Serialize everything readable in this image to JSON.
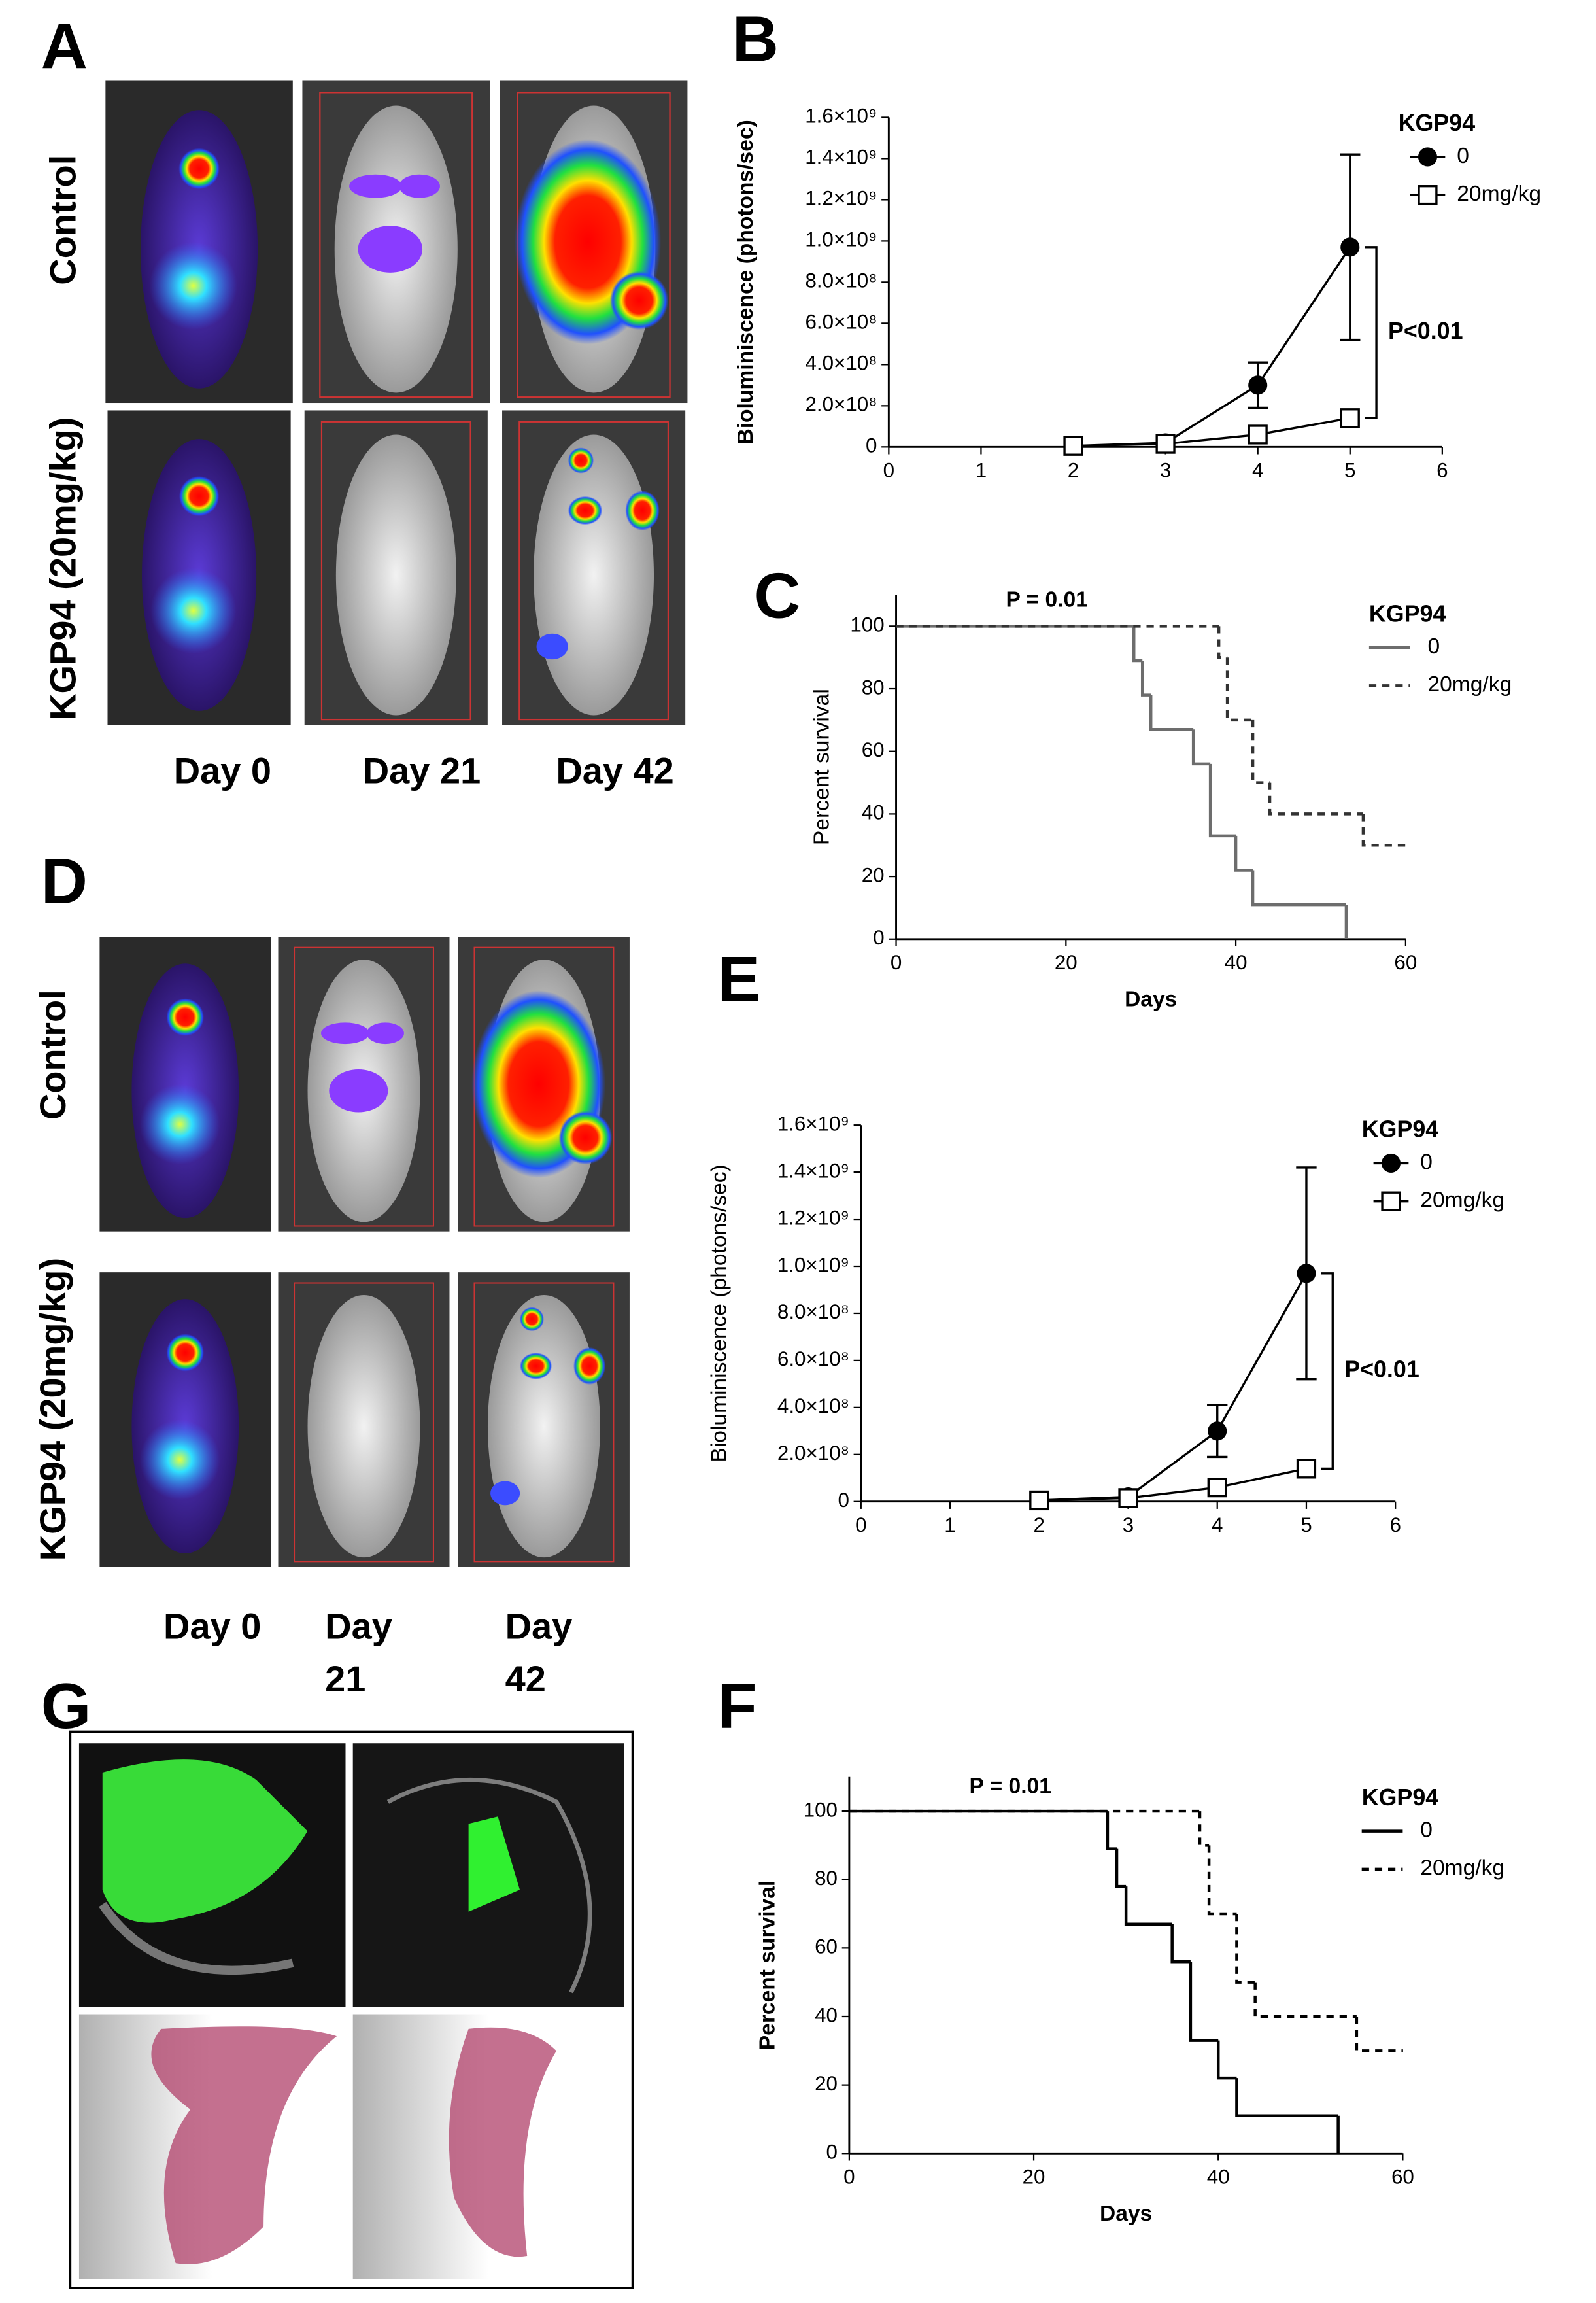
{
  "figure": {
    "panel_letters": [
      "A",
      "B",
      "C",
      "D",
      "E",
      "F",
      "G"
    ],
    "row_labels_A": [
      "Control",
      "KGP94 (20mg/kg)"
    ],
    "row_labels_D": [
      "Control",
      "KGP94 (20mg/kg)"
    ],
    "day_labels_A": [
      "Day 0",
      "Day 21",
      "Day 42"
    ],
    "day_labels_D": [
      [
        "Day 0"
      ],
      [
        "Day",
        "21"
      ],
      [
        "Day",
        "42"
      ]
    ]
  },
  "chart_data": [
    {
      "type": "line",
      "y_label": "Bioluminiscence (photons/sec)",
      "legend_title": "KGP94",
      "annotation": "P<0.01",
      "xlim": [
        0,
        6
      ],
      "xticks": [
        0,
        1,
        2,
        3,
        4,
        5,
        6
      ],
      "ylim": [
        0,
        1600000000
      ],
      "yticks": [
        0,
        {
          "value": 200000000,
          "label": "2.0×10⁸"
        },
        {
          "value": 400000000,
          "label": "4.0×10⁸"
        },
        {
          "value": 600000000,
          "label": "6.0×10⁸"
        },
        {
          "value": 800000000,
          "label": "8.0×10⁸"
        },
        {
          "value": 1000000000,
          "label": "1.0×10⁹"
        },
        {
          "value": 1200000000,
          "label": "1.2×10⁹"
        },
        {
          "value": 1400000000,
          "label": "1.4×10⁹"
        },
        {
          "value": 1600000000,
          "label": "1.6×10⁹"
        }
      ],
      "x": [
        2,
        3,
        4,
        5
      ],
      "series": [
        {
          "name": "0",
          "color": "#000000",
          "marker": "circle",
          "values": [
            5000000,
            20000000,
            300000000,
            970000000
          ],
          "errors": [
            null,
            null,
            110000000,
            450000000
          ]
        },
        {
          "name": "20mg/kg",
          "color": "#000000",
          "marker": "square",
          "values": [
            5000000,
            15000000,
            60000000,
            140000000
          ]
        }
      ]
    },
    {
      "type": "step",
      "x_label": "Days",
      "y_label": "Percent survival",
      "legend_title": "KGP94",
      "annotation": "P = 0.01",
      "xlim": [
        0,
        60
      ],
      "xticks": [
        0,
        20,
        40,
        60
      ],
      "ylim": [
        0,
        110
      ],
      "yticks": [
        0,
        20,
        40,
        60,
        80,
        100
      ],
      "series": [
        {
          "name": "0",
          "color": "#6d6d6d",
          "dash": false,
          "x": [
            0,
            28,
            29,
            30,
            35,
            37,
            40,
            42,
            53
          ],
          "values": [
            100,
            89,
            78,
            67,
            56,
            33,
            22,
            11,
            0
          ]
        },
        {
          "name": "20mg/kg",
          "color": "#333333",
          "dash": true,
          "x": [
            0,
            38,
            39,
            42,
            44,
            55,
            60
          ],
          "values": [
            100,
            90,
            70,
            50,
            40,
            30,
            30
          ]
        }
      ]
    },
    {
      "type": "line",
      "y_label": "Bioluminiscence (photons/sec)",
      "legend_title": "KGP94",
      "annotation": "P<0.01",
      "xlim": [
        0,
        6
      ],
      "xticks": [
        0,
        1,
        2,
        3,
        4,
        5,
        6
      ],
      "ylim": [
        0,
        1600000000
      ],
      "yticks": [
        0,
        {
          "value": 200000000,
          "label": "2.0×10⁸"
        },
        {
          "value": 400000000,
          "label": "4.0×10⁸"
        },
        {
          "value": 600000000,
          "label": "6.0×10⁸"
        },
        {
          "value": 800000000,
          "label": "8.0×10⁸"
        },
        {
          "value": 1000000000,
          "label": "1.0×10⁹"
        },
        {
          "value": 1200000000,
          "label": "1.2×10⁹"
        },
        {
          "value": 1400000000,
          "label": "1.4×10⁹"
        },
        {
          "value": 1600000000,
          "label": "1.6×10⁹"
        }
      ],
      "x": [
        2,
        3,
        4,
        5
      ],
      "series": [
        {
          "name": "0",
          "color": "#000000",
          "marker": "circle",
          "values": [
            5000000,
            20000000,
            300000000,
            970000000
          ],
          "errors": [
            null,
            null,
            110000000,
            450000000
          ]
        },
        {
          "name": "20mg/kg",
          "color": "#000000",
          "marker": "square",
          "values": [
            5000000,
            15000000,
            60000000,
            140000000
          ]
        }
      ]
    },
    {
      "type": "step",
      "x_label": "Days",
      "y_label": "Percent survival",
      "legend_title": "KGP94",
      "annotation": "P = 0.01",
      "xlim": [
        0,
        60
      ],
      "xticks": [
        0,
        20,
        40,
        60
      ],
      "ylim": [
        0,
        110
      ],
      "yticks": [
        0,
        20,
        40,
        60,
        80,
        100
      ],
      "series": [
        {
          "name": "0",
          "color": "#000000",
          "dash": false,
          "x": [
            0,
            28,
            29,
            30,
            35,
            37,
            40,
            42,
            53
          ],
          "values": [
            100,
            89,
            78,
            67,
            56,
            33,
            22,
            11,
            0
          ]
        },
        {
          "name": "20mg/kg",
          "color": "#000000",
          "dash": true,
          "x": [
            0,
            38,
            39,
            42,
            44,
            55,
            60
          ],
          "values": [
            100,
            90,
            70,
            50,
            40,
            30,
            30
          ]
        }
      ]
    }
  ]
}
